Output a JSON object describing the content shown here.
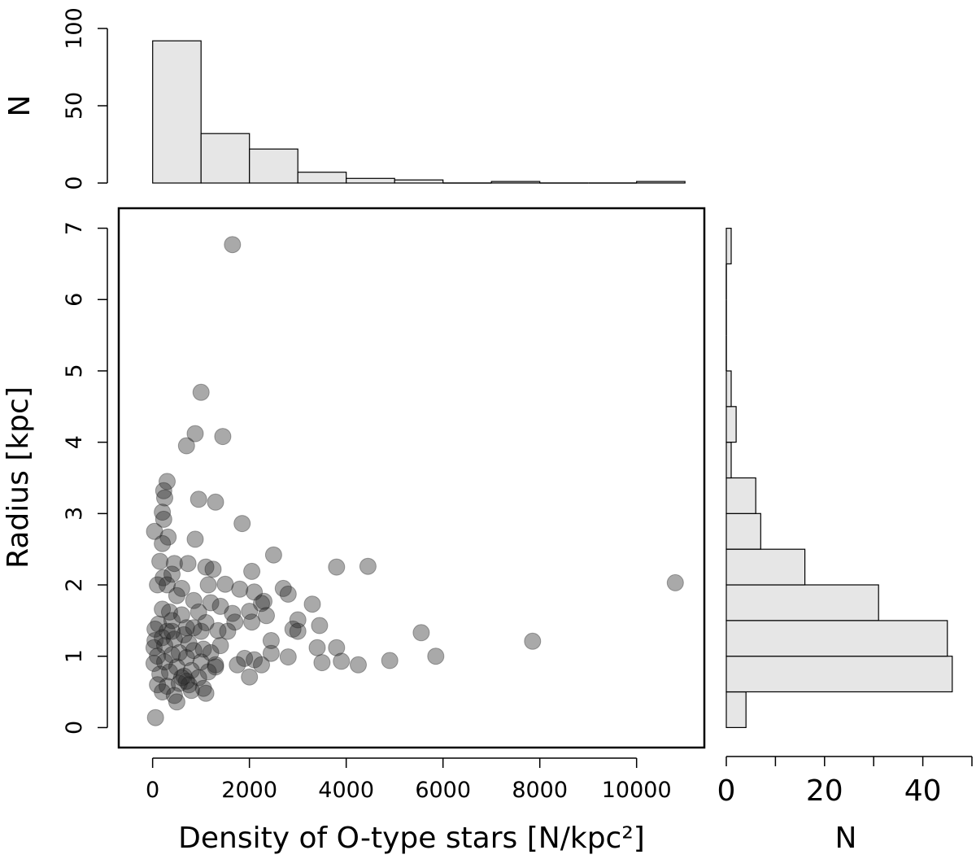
{
  "chart_data": [
    {
      "type": "scatter",
      "xlabel": "Density of O-type stars [N/kpc²]",
      "ylabel": "Radius [kpc]",
      "xlim": [
        -700,
        11400
      ],
      "ylim": [
        -0.28,
        7.28
      ],
      "xticks": [
        0,
        2000,
        4000,
        6000,
        8000,
        10000
      ],
      "yticks": [
        0,
        1,
        2,
        3,
        4,
        5,
        6,
        7
      ],
      "grid": false,
      "points": [
        [
          1650,
          6.77
        ],
        [
          1000,
          4.7
        ],
        [
          880,
          4.12
        ],
        [
          1450,
          4.08
        ],
        [
          700,
          3.95
        ],
        [
          300,
          3.45
        ],
        [
          230,
          3.32
        ],
        [
          250,
          3.22
        ],
        [
          950,
          3.2
        ],
        [
          1300,
          3.16
        ],
        [
          200,
          3.02
        ],
        [
          230,
          2.92
        ],
        [
          1850,
          2.86
        ],
        [
          40,
          2.75
        ],
        [
          320,
          2.67
        ],
        [
          880,
          2.64
        ],
        [
          200,
          2.58
        ],
        [
          2500,
          2.42
        ],
        [
          4450,
          2.26
        ],
        [
          3800,
          2.25
        ],
        [
          150,
          2.33
        ],
        [
          450,
          2.3
        ],
        [
          730,
          2.3
        ],
        [
          1100,
          2.25
        ],
        [
          1250,
          2.22
        ],
        [
          10800,
          2.03
        ],
        [
          2050,
          2.19
        ],
        [
          220,
          2.1
        ],
        [
          400,
          2.15
        ],
        [
          2300,
          1.77
        ],
        [
          2700,
          1.95
        ],
        [
          2800,
          1.87
        ],
        [
          3300,
          1.73
        ],
        [
          100,
          2.0
        ],
        [
          300,
          2.0
        ],
        [
          600,
          1.95
        ],
        [
          1150,
          2.0
        ],
        [
          1500,
          2.01
        ],
        [
          1800,
          1.94
        ],
        [
          2100,
          1.9
        ],
        [
          500,
          1.85
        ],
        [
          850,
          1.78
        ],
        [
          1200,
          1.75
        ],
        [
          1400,
          1.7
        ],
        [
          2250,
          1.74
        ],
        [
          200,
          1.66
        ],
        [
          350,
          1.62
        ],
        [
          600,
          1.58
        ],
        [
          950,
          1.62
        ],
        [
          1650,
          1.6
        ],
        [
          2000,
          1.63
        ],
        [
          2350,
          1.57
        ],
        [
          3000,
          1.51
        ],
        [
          120,
          1.45
        ],
        [
          400,
          1.5
        ],
        [
          700,
          1.4
        ],
        [
          1100,
          1.47
        ],
        [
          1350,
          1.36
        ],
        [
          1700,
          1.48
        ],
        [
          2050,
          1.48
        ],
        [
          2900,
          1.38
        ],
        [
          3450,
          1.43
        ],
        [
          50,
          1.38
        ],
        [
          300,
          1.35
        ],
        [
          650,
          1.3
        ],
        [
          1000,
          1.35
        ],
        [
          1550,
          1.35
        ],
        [
          3000,
          1.35
        ],
        [
          5550,
          1.33
        ],
        [
          7850,
          1.21
        ],
        [
          50,
          1.22
        ],
        [
          200,
          1.26
        ],
        [
          450,
          1.24
        ],
        [
          750,
          1.18
        ],
        [
          1050,
          1.1
        ],
        [
          1400,
          1.15
        ],
        [
          2450,
          1.22
        ],
        [
          3400,
          1.12
        ],
        [
          3800,
          1.12
        ],
        [
          30,
          1.12
        ],
        [
          250,
          1.15
        ],
        [
          550,
          1.05
        ],
        [
          850,
          1.08
        ],
        [
          1200,
          1.05
        ],
        [
          1900,
          0.97
        ],
        [
          2100,
          0.95
        ],
        [
          2450,
          1.04
        ],
        [
          100,
          1.0
        ],
        [
          400,
          1.02
        ],
        [
          700,
          0.98
        ],
        [
          1000,
          0.92
        ],
        [
          1300,
          0.88
        ],
        [
          1750,
          0.88
        ],
        [
          2800,
          0.99
        ],
        [
          3500,
          0.91
        ],
        [
          3900,
          0.93
        ],
        [
          4900,
          0.94
        ],
        [
          5850,
          1.0
        ],
        [
          30,
          0.9
        ],
        [
          250,
          0.92
        ],
        [
          500,
          0.85
        ],
        [
          800,
          0.8
        ],
        [
          1150,
          0.78
        ],
        [
          2250,
          0.88
        ],
        [
          4250,
          0.88
        ],
        [
          150,
          0.75
        ],
        [
          350,
          0.78
        ],
        [
          650,
          0.72
        ],
        [
          950,
          0.7
        ],
        [
          2000,
          0.71
        ],
        [
          100,
          0.6
        ],
        [
          300,
          0.58
        ],
        [
          550,
          0.62
        ],
        [
          750,
          0.6
        ],
        [
          1050,
          0.55
        ],
        [
          200,
          0.5
        ],
        [
          450,
          0.45
        ],
        [
          800,
          0.52
        ],
        [
          1100,
          0.48
        ],
        [
          500,
          0.36
        ],
        [
          700,
          0.65
        ],
        [
          600,
          0.7
        ],
        [
          1300,
          0.85
        ],
        [
          400,
          1.35
        ],
        [
          850,
          1.4
        ],
        [
          60,
          0.14
        ]
      ]
    },
    {
      "type": "bar",
      "orientation": "vertical",
      "ylabel": "N",
      "ylim": [
        0,
        100
      ],
      "yticks": [
        0,
        50,
        100
      ],
      "bin_edges": [
        0,
        1000,
        2000,
        3000,
        4000,
        5000,
        6000,
        7000,
        8000,
        9000,
        10000,
        11000
      ],
      "values": [
        92,
        32,
        22,
        7,
        3,
        2,
        0,
        1,
        0,
        0,
        1
      ]
    },
    {
      "type": "bar",
      "orientation": "horizontal",
      "xlabel": "N",
      "xlim": [
        0,
        50
      ],
      "xticks": [
        0,
        20,
        40
      ],
      "bin_edges": [
        0,
        0.5,
        1,
        1.5,
        2,
        2.5,
        3,
        3.5,
        4,
        4.5,
        5,
        5.5,
        6,
        6.5,
        7
      ],
      "values": [
        4,
        46,
        45,
        31,
        16,
        7,
        6,
        1,
        2,
        1,
        0,
        0,
        0,
        1
      ]
    }
  ]
}
